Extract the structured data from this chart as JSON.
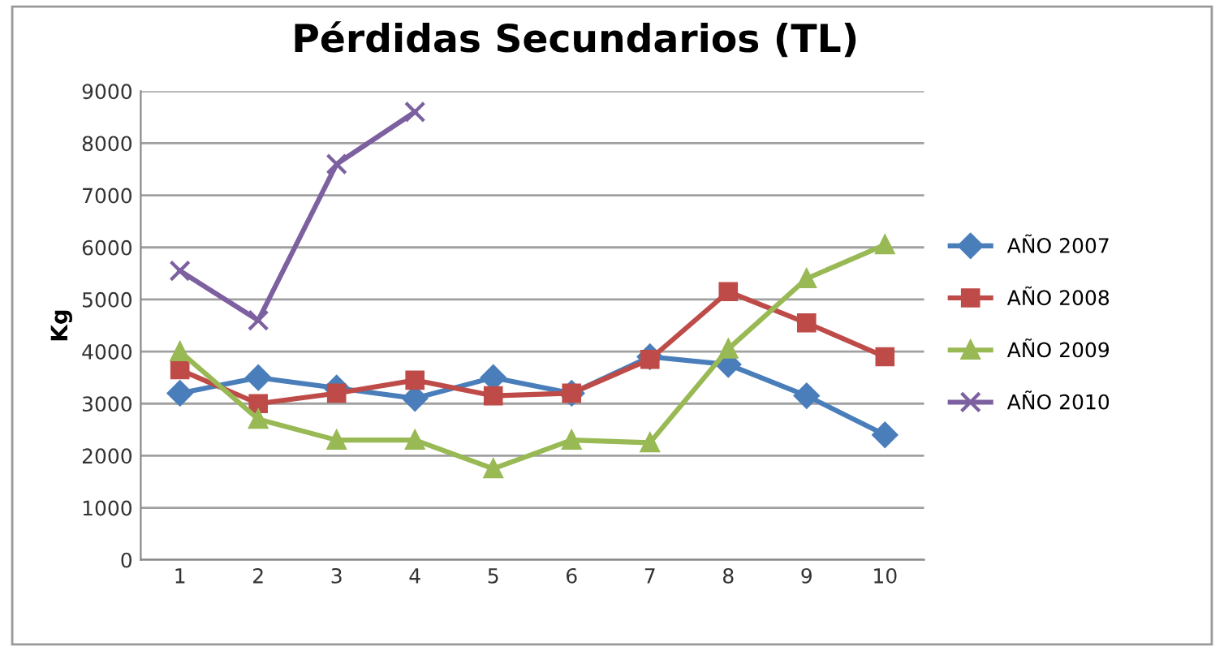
{
  "chart_data": {
    "type": "line",
    "title": "Pérdidas Secundarios (TL)",
    "ylabel": "Kg",
    "categories": [
      "1",
      "2",
      "3",
      "4",
      "5",
      "6",
      "7",
      "8",
      "9",
      "10"
    ],
    "ylim": [
      0,
      9000
    ],
    "yticks": [
      0,
      1000,
      2000,
      3000,
      4000,
      5000,
      6000,
      7000,
      8000,
      9000
    ],
    "grid": "y",
    "legend": "right",
    "series": [
      {
        "name": "AÑO 2007",
        "color": "#4a7ebb",
        "marker": "diamond",
        "values": [
          3200,
          3500,
          3300,
          3100,
          3500,
          3200,
          3900,
          3750,
          3150,
          2400
        ]
      },
      {
        "name": "AÑO 2008",
        "color": "#be4b48",
        "marker": "square",
        "values": [
          3650,
          3000,
          3200,
          3450,
          3150,
          3200,
          3850,
          5150,
          4550,
          3900
        ]
      },
      {
        "name": "AÑO 2009",
        "color": "#98b954",
        "marker": "triangle",
        "values": [
          4000,
          2700,
          2300,
          2300,
          1750,
          2300,
          2250,
          4050,
          5400,
          6050
        ]
      },
      {
        "name": "AÑO 2010",
        "color": "#7d60a0",
        "marker": "cross",
        "values": [
          5550,
          4600,
          7600,
          8600,
          null,
          null,
          null,
          null,
          null,
          null
        ]
      }
    ]
  }
}
